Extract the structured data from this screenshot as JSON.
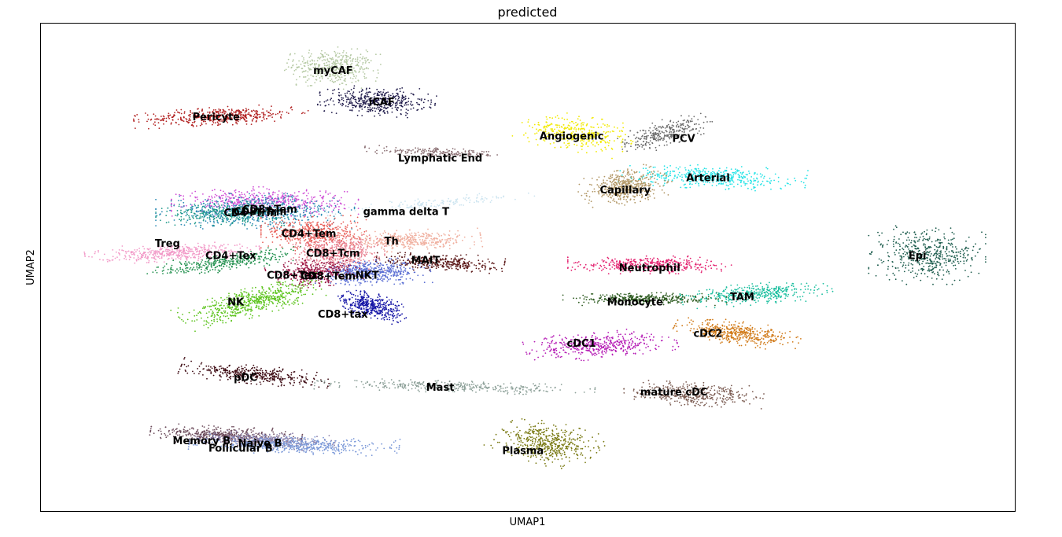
{
  "chart_data": {
    "type": "scatter",
    "title": "predicted",
    "xlabel": "UMAP1",
    "ylabel": "UMAP2",
    "xlim": [
      0,
      100
    ],
    "ylim": [
      0,
      100
    ],
    "grid": false,
    "legend": "none (cluster labels drawn on data)",
    "clusters": [
      {
        "name": "myCAF",
        "color": "#b5c9a3",
        "x": 30,
        "y": 91,
        "rx": 4,
        "ry": 3.5,
        "angle": -10,
        "n": 450
      },
      {
        "name": "iCAF",
        "color": "#1f1a4a",
        "x": 34.5,
        "y": 84,
        "rx": 5,
        "ry": 2.5,
        "angle": -5,
        "n": 450
      },
      {
        "name": "Pericyte",
        "color": "#b22222",
        "x": 18.5,
        "y": 81,
        "rx": 7.5,
        "ry": 1.6,
        "angle": 5,
        "n": 450
      },
      {
        "name": "Angiogenic",
        "color": "#f2ea00",
        "x": 55,
        "y": 77.5,
        "rx": 5,
        "ry": 3,
        "angle": -20,
        "n": 350
      },
      {
        "name": "PCV",
        "color": "#6b6b6b",
        "x": 64,
        "y": 77.5,
        "rx": 4.5,
        "ry": 2,
        "angle": 35,
        "n": 300
      },
      {
        "name": "Arterial",
        "color": "#25e3e6",
        "x": 69,
        "y": 68.5,
        "rx": 8,
        "ry": 2,
        "angle": -5,
        "n": 450
      },
      {
        "name": "Capillary",
        "color": "#b29766",
        "x": 60,
        "y": 66.5,
        "rx": 4,
        "ry": 2.8,
        "angle": 25,
        "n": 450
      },
      {
        "name": "Lymphatic End",
        "color": "#8a6e72",
        "x": 41,
        "y": 73.5,
        "rx": 6.5,
        "ry": 0.8,
        "angle": -5,
        "n": 200
      },
      {
        "name": "gamma delta T",
        "color": "#cce4f0",
        "x": 40,
        "y": 63,
        "rx": 9,
        "ry": 1,
        "angle": 10,
        "n": 150
      },
      {
        "name": "CD8+Tem",
        "color": "#d04fd6",
        "x": 23,
        "y": 63.5,
        "rx": 8,
        "ry": 2.5,
        "angle": 0,
        "n": 500
      },
      {
        "name": "CD8+Trm",
        "color": "#2a8ab4",
        "x": 22,
        "y": 61.5,
        "rx": 8.5,
        "ry": 3,
        "angle": 0,
        "n": 600
      },
      {
        "name": "CD4+Trm",
        "color": "#1f9a8a",
        "x": 19,
        "y": 61,
        "rx": 6,
        "ry": 2,
        "angle": 0,
        "n": 300
      },
      {
        "name": "CD4+Tem",
        "color": "#e8605a",
        "x": 28,
        "y": 57,
        "rx": 4.5,
        "ry": 3,
        "angle": 0,
        "n": 500
      },
      {
        "name": "Treg",
        "color": "#f29ac8",
        "x": 13.5,
        "y": 53,
        "rx": 7.5,
        "ry": 1.5,
        "angle": 5,
        "n": 450
      },
      {
        "name": "CD4+Tex",
        "color": "#23914f",
        "x": 19,
        "y": 51,
        "rx": 7,
        "ry": 1.5,
        "angle": 15,
        "n": 350
      },
      {
        "name": "Th",
        "color": "#f0b0a0",
        "x": 38,
        "y": 55.5,
        "rx": 6,
        "ry": 1.8,
        "angle": 5,
        "n": 400
      },
      {
        "name": "CD8+Tcm",
        "color": "#e88090",
        "x": 30.5,
        "y": 53,
        "rx": 4,
        "ry": 3,
        "angle": 0,
        "n": 500
      },
      {
        "name": "MAIT",
        "color": "#5a1616",
        "x": 41,
        "y": 51,
        "rx": 5.5,
        "ry": 1.5,
        "angle": -5,
        "n": 350
      },
      {
        "name": "NKT",
        "color": "#5b6ed3",
        "x": 34,
        "y": 49,
        "rx": 5,
        "ry": 2.2,
        "angle": 5,
        "n": 500
      },
      {
        "name": "CD8+Tex",
        "color": "#9b1b48",
        "x": 28,
        "y": 49,
        "rx": 4,
        "ry": 2.5,
        "angle": 10,
        "n": 400
      },
      {
        "name": "NK",
        "color": "#5ec41f",
        "x": 22,
        "y": 43,
        "rx": 7,
        "ry": 2.3,
        "angle": 30,
        "n": 600
      },
      {
        "name": "CD8+tax",
        "color": "#1515a6",
        "x": 34,
        "y": 42,
        "rx": 3.5,
        "ry": 2,
        "angle": -40,
        "n": 400
      },
      {
        "name": "pDC",
        "color": "#3d0a12",
        "x": 22,
        "y": 28,
        "rx": 6.5,
        "ry": 1.6,
        "angle": -12,
        "n": 400
      },
      {
        "name": "Memory B",
        "color": "#6b4a5a",
        "x": 19,
        "y": 15.5,
        "rx": 6.5,
        "ry": 1.6,
        "angle": -5,
        "n": 450
      },
      {
        "name": "Naive B",
        "color": "#8a7ea8",
        "x": 23,
        "y": 14.5,
        "rx": 6,
        "ry": 1.4,
        "angle": -5,
        "n": 350
      },
      {
        "name": "Follicular B",
        "color": "#7a98d8",
        "x": 26,
        "y": 13.5,
        "rx": 9,
        "ry": 1.5,
        "angle": -3,
        "n": 500
      },
      {
        "name": "Mast",
        "color": "#8a9e96",
        "x": 42.5,
        "y": 25.5,
        "rx": 12,
        "ry": 1,
        "angle": -3,
        "n": 350
      },
      {
        "name": "Plasma",
        "color": "#7a7a14",
        "x": 52,
        "y": 14,
        "rx": 4.5,
        "ry": 3.5,
        "angle": -30,
        "n": 500
      },
      {
        "name": "Neutrophil",
        "color": "#e31f6e",
        "x": 62.5,
        "y": 50.5,
        "rx": 7,
        "ry": 1.5,
        "angle": 0,
        "n": 400
      },
      {
        "name": "Monocyte",
        "color": "#2c5a1f",
        "x": 62,
        "y": 43.5,
        "rx": 7,
        "ry": 1.1,
        "angle": 0,
        "n": 350
      },
      {
        "name": "TAM",
        "color": "#1cbf9f",
        "x": 73.5,
        "y": 44.5,
        "rx": 6.5,
        "ry": 1.8,
        "angle": 8,
        "n": 400
      },
      {
        "name": "cDC2",
        "color": "#d17a18",
        "x": 71.5,
        "y": 36.5,
        "rx": 5.5,
        "ry": 2,
        "angle": -15,
        "n": 450
      },
      {
        "name": "cDC1",
        "color": "#b51cb5",
        "x": 57.5,
        "y": 34,
        "rx": 6.5,
        "ry": 2.3,
        "angle": 10,
        "n": 450
      },
      {
        "name": "mature cDC",
        "color": "#7a5a50",
        "x": 67,
        "y": 24,
        "rx": 6,
        "ry": 2,
        "angle": -5,
        "n": 400
      },
      {
        "name": "Epi",
        "color": "#1f5e4f",
        "x": 91,
        "y": 52.5,
        "rx": 5,
        "ry": 5,
        "angle": 0,
        "n": 500
      }
    ],
    "labels": [
      {
        "text": "myCAF",
        "x": 30,
        "y": 90.5
      },
      {
        "text": "iCAF",
        "x": 35,
        "y": 84
      },
      {
        "text": "Pericyte",
        "x": 18,
        "y": 81
      },
      {
        "text": "Angiogenic",
        "x": 54.5,
        "y": 77
      },
      {
        "text": "PCV",
        "x": 66,
        "y": 76.5
      },
      {
        "text": "Lymphatic End",
        "x": 41,
        "y": 72.5
      },
      {
        "text": "Arterial",
        "x": 68.5,
        "y": 68.5
      },
      {
        "text": "Capillary",
        "x": 60,
        "y": 66
      },
      {
        "text": "gamma delta T",
        "x": 37.5,
        "y": 61.5
      },
      {
        "text": "CD8+Tem",
        "x": 23.5,
        "y": 62
      },
      {
        "text": "CD8+Trm",
        "x": 22.5,
        "y": 61.5
      },
      {
        "text": "CD4+Trm",
        "x": 21.5,
        "y": 61.3
      },
      {
        "text": "CD4+Tem",
        "x": 27.5,
        "y": 57
      },
      {
        "text": "Treg",
        "x": 13,
        "y": 55
      },
      {
        "text": "Th",
        "x": 36,
        "y": 55.5
      },
      {
        "text": "CD8+Tcm",
        "x": 30,
        "y": 53
      },
      {
        "text": "CD4+Tex",
        "x": 19.5,
        "y": 52.5
      },
      {
        "text": "MAIT",
        "x": 39.5,
        "y": 51.5
      },
      {
        "text": "Neutrophil",
        "x": 62.5,
        "y": 50
      },
      {
        "text": "Epi",
        "x": 90,
        "y": 52.5
      },
      {
        "text": "CD8+Tex",
        "x": 25.8,
        "y": 48.5
      },
      {
        "text": "CD8+Tem",
        "x": 29.5,
        "y": 48.3
      },
      {
        "text": "NKT",
        "x": 33.5,
        "y": 48.5
      },
      {
        "text": "Monocyte",
        "x": 61,
        "y": 43
      },
      {
        "text": "TAM",
        "x": 72,
        "y": 44
      },
      {
        "text": "NK",
        "x": 20,
        "y": 43
      },
      {
        "text": "CD8+tax",
        "x": 31,
        "y": 40.5
      },
      {
        "text": "cDC2",
        "x": 68.5,
        "y": 36.5
      },
      {
        "text": "cDC1",
        "x": 55.5,
        "y": 34.5
      },
      {
        "text": "pDC",
        "x": 21,
        "y": 27.5
      },
      {
        "text": "Mast",
        "x": 41,
        "y": 25.5
      },
      {
        "text": "mature cDC",
        "x": 65,
        "y": 24.5
      },
      {
        "text": "Memory B",
        "x": 16.5,
        "y": 14.5
      },
      {
        "text": "Naive B",
        "x": 22.5,
        "y": 14
      },
      {
        "text": "Follicular B",
        "x": 20.5,
        "y": 13
      },
      {
        "text": "Plasma",
        "x": 49.5,
        "y": 12.5
      }
    ]
  }
}
